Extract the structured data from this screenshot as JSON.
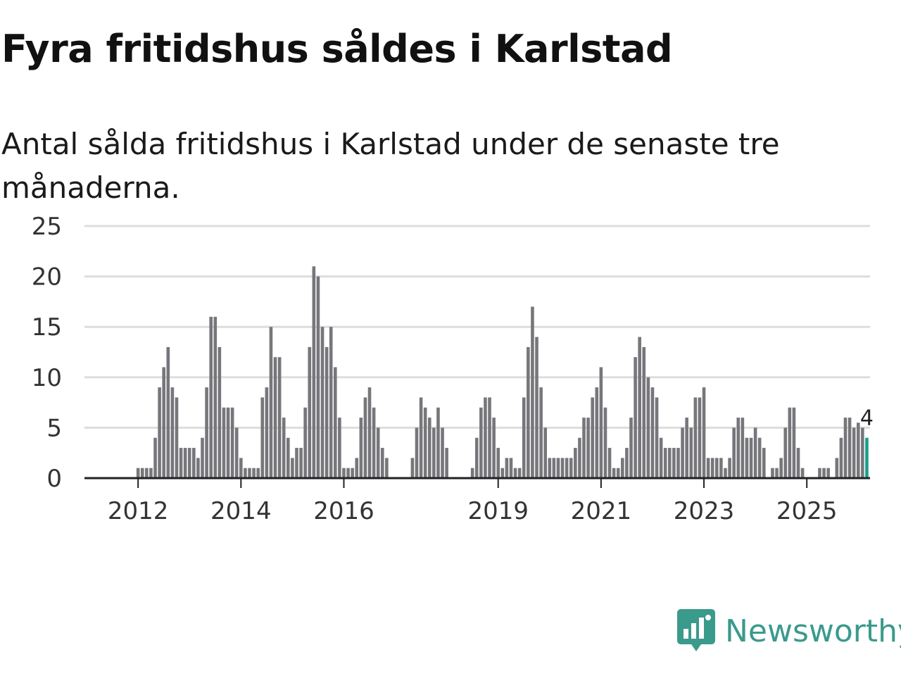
{
  "header": {
    "title": "Fyra fritidshus såldes i Karlstad",
    "subtitle": "Antal sålda fritidshus i Karlstad under de senaste tre månaderna."
  },
  "brand": {
    "name": "Newsworthy",
    "icon": "newsworthy-logo-icon"
  },
  "colors": {
    "bar": "#76767b",
    "highlight": "#1a9e8f",
    "grid": "#dddddd",
    "axis": "#222222",
    "brand": "#3a9a8c"
  },
  "chart_data": {
    "type": "bar",
    "title": "Fyra fritidshus såldes i Karlstad",
    "subtitle": "Antal sålda fritidshus i Karlstad under de senaste tre månaderna.",
    "x_start": "2011-09",
    "x_end": "2025-10",
    "xticks": [
      "2012",
      "2014",
      "2016",
      "2019",
      "2021",
      "2023",
      "2025"
    ],
    "yticks": [
      0,
      5,
      10,
      15,
      20,
      25
    ],
    "ylim": [
      0,
      25
    ],
    "grid": true,
    "values": [
      0,
      0,
      0,
      0,
      1,
      1,
      1,
      1,
      4,
      9,
      11,
      13,
      9,
      8,
      3,
      3,
      3,
      3,
      2,
      4,
      9,
      16,
      16,
      13,
      7,
      7,
      7,
      5,
      2,
      1,
      1,
      1,
      1,
      8,
      9,
      15,
      12,
      12,
      6,
      4,
      2,
      3,
      3,
      7,
      13,
      21,
      20,
      15,
      13,
      15,
      11,
      6,
      1,
      1,
      1,
      2,
      6,
      8,
      9,
      7,
      5,
      3,
      2,
      0,
      0,
      0,
      0,
      0,
      2,
      5,
      8,
      7,
      6,
      5,
      7,
      5,
      3,
      0,
      0,
      0,
      0,
      0,
      1,
      4,
      7,
      8,
      8,
      6,
      3,
      1,
      2,
      2,
      1,
      1,
      8,
      13,
      17,
      14,
      9,
      5,
      2,
      2,
      2,
      2,
      2,
      2,
      3,
      4,
      6,
      6,
      8,
      9,
      11,
      7,
      3,
      1,
      1,
      2,
      3,
      6,
      12,
      14,
      13,
      10,
      9,
      8,
      4,
      3,
      3,
      3,
      3,
      5,
      6,
      5,
      8,
      8,
      9,
      2,
      2,
      2,
      2,
      1,
      2,
      5,
      6,
      6,
      4,
      4,
      5,
      4,
      3,
      0,
      1,
      1,
      2,
      5,
      7,
      7,
      3,
      1,
      0,
      0,
      0,
      1,
      1,
      1,
      0,
      2,
      4,
      6,
      6,
      5,
      5.5,
      5,
      4
    ],
    "highlight_last": true,
    "last_value_label": "4"
  }
}
